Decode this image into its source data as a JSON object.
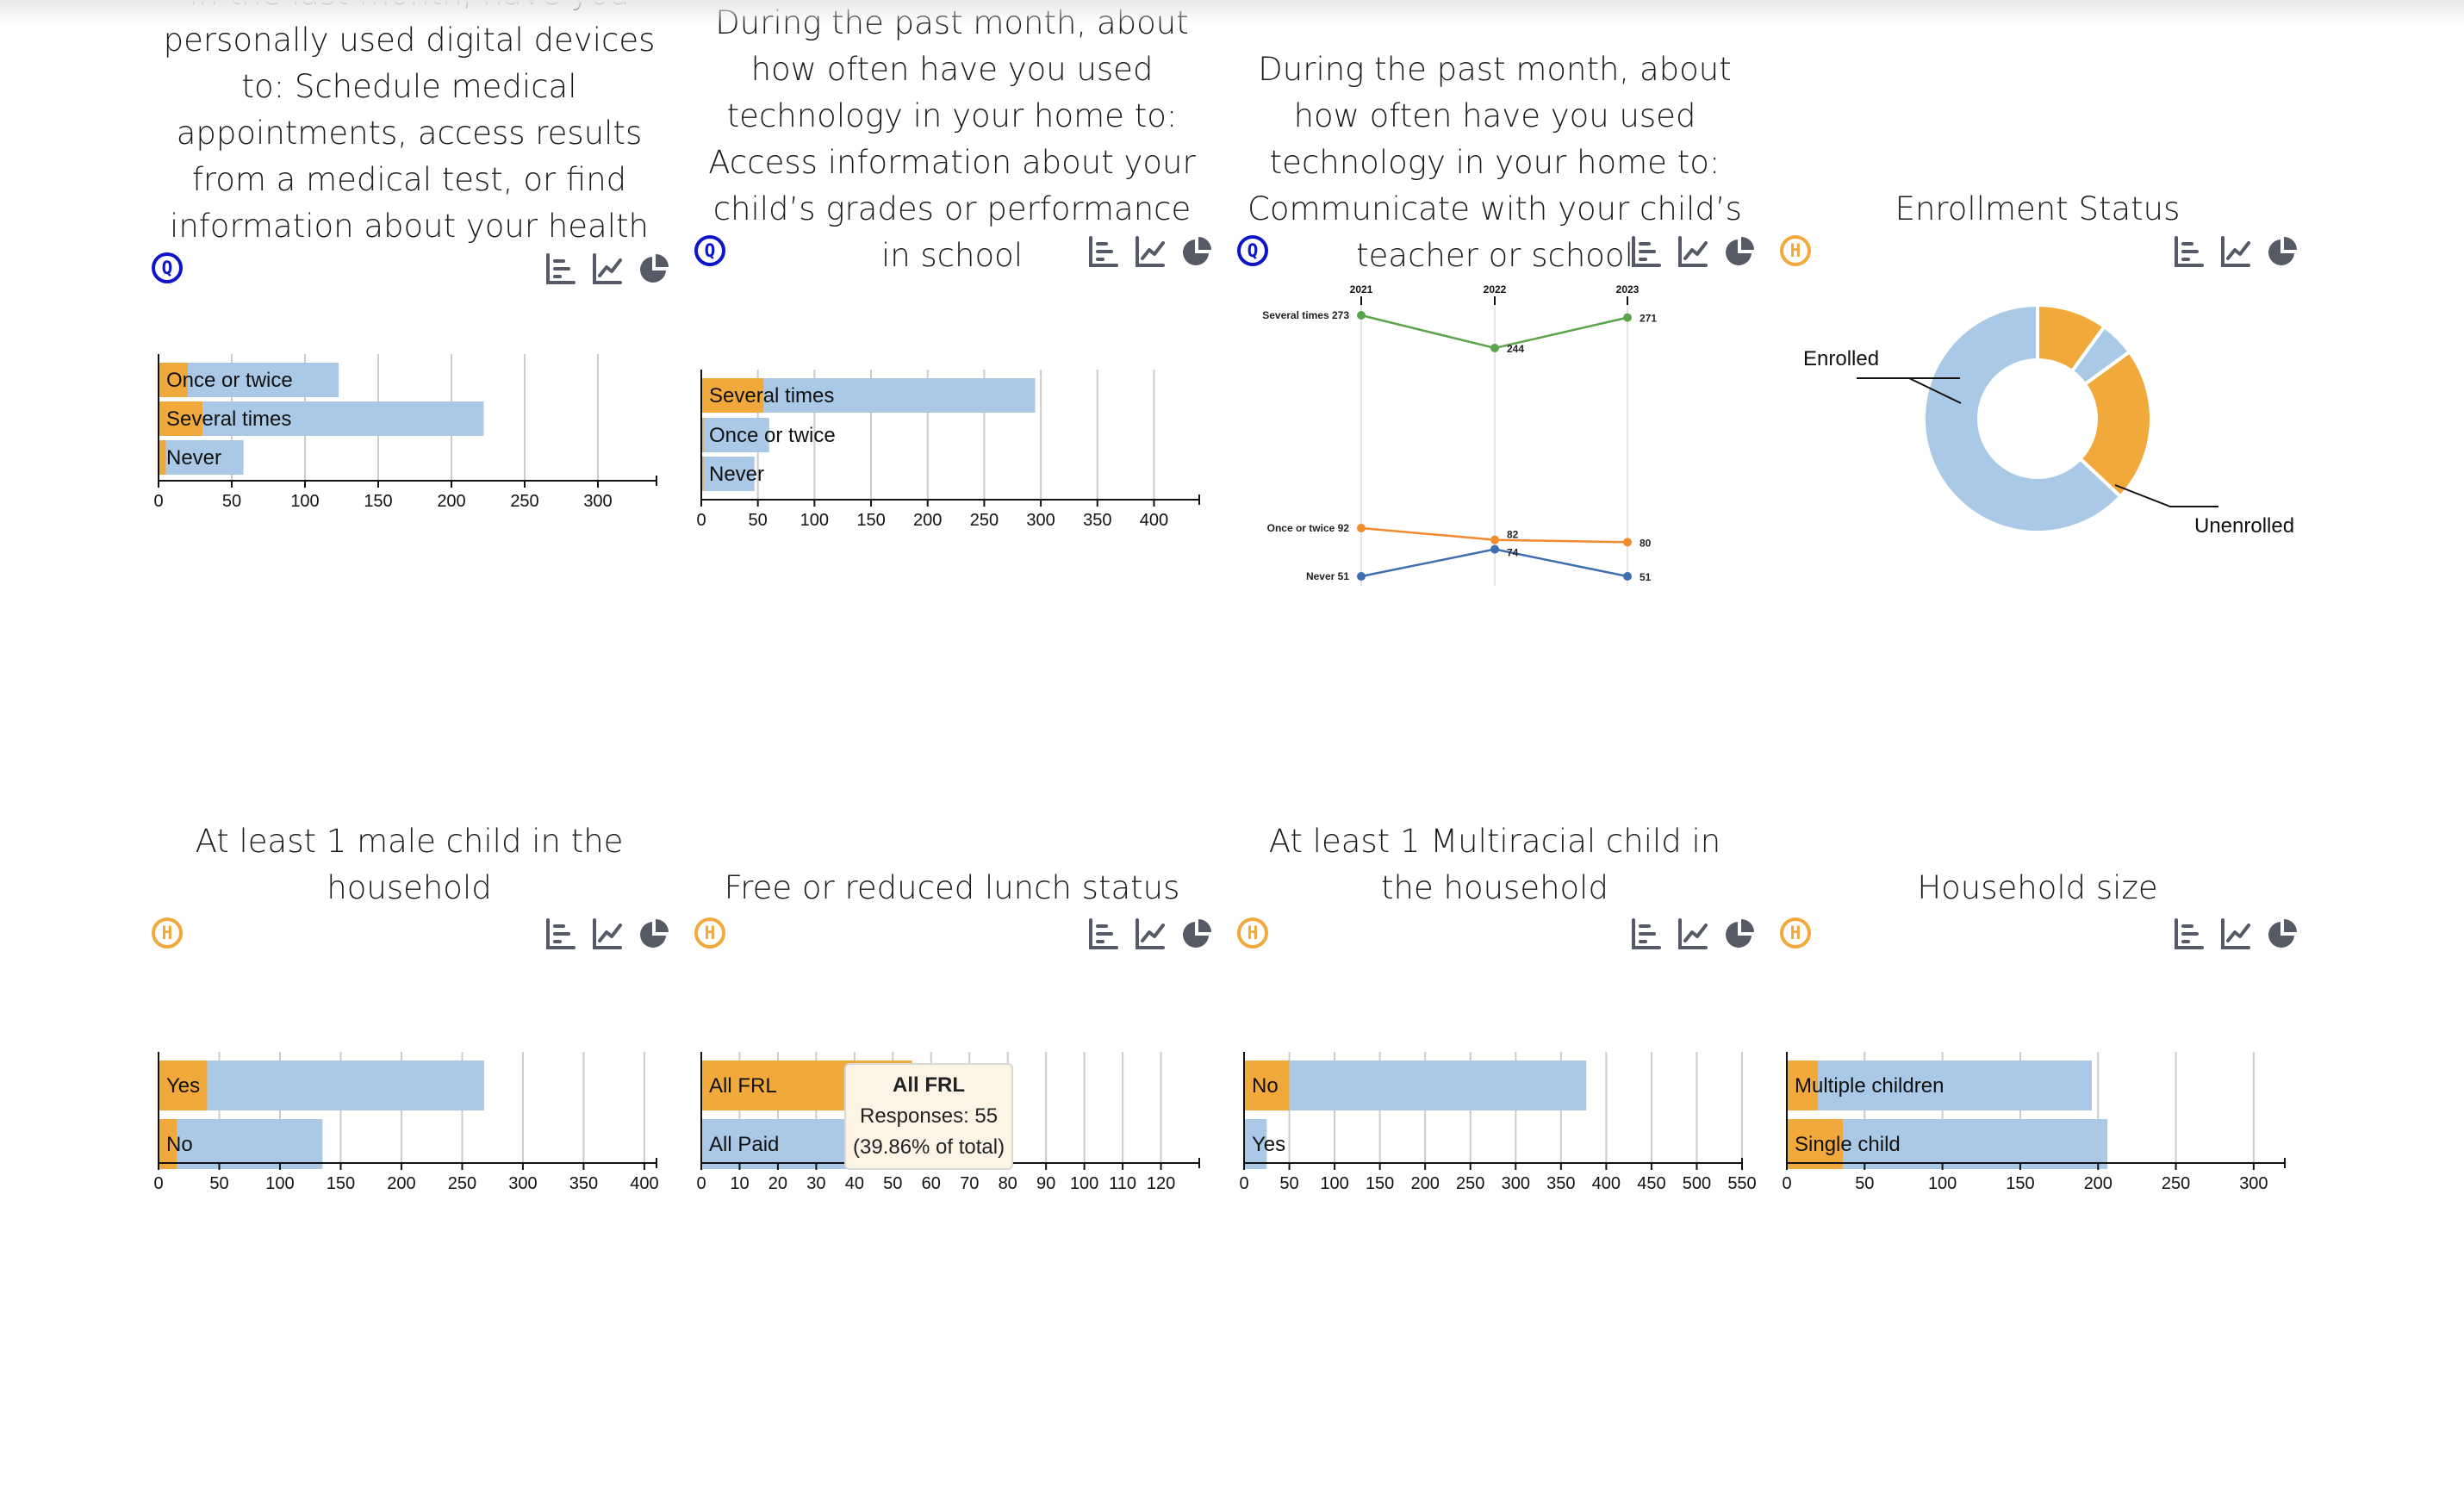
{
  "colors": {
    "highlight": "#f2a93b",
    "total": "#a9c9e6",
    "grid": "#cccccc",
    "line_several": "#5aa44a",
    "line_once": "#f28a2e",
    "line_never": "#3d6fb0",
    "survey_badge": "#0d14c9",
    "household_badge": "#f2a93b",
    "icon": "#555a66"
  },
  "icons": [
    "bar-chart-icon",
    "line-chart-icon",
    "pie-chart-icon"
  ],
  "cards": [
    {
      "id": "medical",
      "title": "In the last month, have you personally used digital devices to: Schedule medical appointments, access results from a medical test, or find information about your health",
      "badge": "Q"
    },
    {
      "id": "grades",
      "title": "During the past month, about how often have you used technology in your home to: Access information about your child’s grades or performance in school",
      "badge": "Q"
    },
    {
      "id": "teacher",
      "title": "During the past month, about how often have you used technology in your home to: Communicate with your child’s teacher or school",
      "badge": "Q"
    },
    {
      "id": "enrollment",
      "title": "Enrollment Status",
      "badge": "H"
    },
    {
      "id": "male",
      "title": "At least 1 male child in the household",
      "badge": "H"
    },
    {
      "id": "frl",
      "title": "Free or reduced lunch status",
      "badge": "H"
    },
    {
      "id": "multiracial",
      "title": "At least 1 Multiracial child in the household",
      "badge": "H"
    },
    {
      "id": "hhsize",
      "title": "Household size",
      "badge": "H"
    }
  ],
  "tooltip": {
    "title": "All FRL",
    "line1": "Responses: 55",
    "line2": "(39.86% of total)"
  },
  "chart_data": [
    {
      "id": "medical",
      "type": "bar",
      "orientation": "horizontal",
      "categories": [
        "Once or twice",
        "Several times",
        "Never"
      ],
      "series": [
        {
          "values": [
            123,
            222,
            58
          ]
        },
        {
          "values": [
            20,
            30,
            5
          ]
        }
      ],
      "xlim": [
        0,
        340
      ],
      "xticks": [
        0,
        50,
        100,
        150,
        200,
        250,
        300
      ]
    },
    {
      "id": "grades",
      "type": "bar",
      "orientation": "horizontal",
      "categories": [
        "Several times",
        "Once or twice",
        "Never"
      ],
      "series": [
        {
          "values": [
            295,
            60,
            47
          ]
        },
        {
          "values": [
            55,
            2,
            2
          ]
        }
      ],
      "xlim": [
        0,
        440
      ],
      "xticks": [
        0,
        50,
        100,
        150,
        200,
        250,
        300,
        350,
        400
      ]
    },
    {
      "id": "teacher",
      "type": "line",
      "x": [
        "2021",
        "2022",
        "2023"
      ],
      "series": [
        {
          "name": "Several times",
          "values": [
            273,
            244,
            271
          ]
        },
        {
          "name": "Once or twice",
          "values": [
            92,
            82,
            80
          ]
        },
        {
          "name": "Never",
          "values": [
            51,
            74,
            51
          ]
        }
      ],
      "start_labels": [
        "Several times 273",
        "Once or twice 92",
        "Never 51"
      ],
      "point_labels": [
        [
          "244",
          "271"
        ],
        [
          "82",
          "80"
        ],
        [
          "74",
          "51"
        ]
      ]
    },
    {
      "id": "enrollment",
      "type": "pie",
      "donut": true,
      "slices": [
        {
          "label": "Enrolled",
          "value": 10
        },
        {
          "label": "",
          "value": 5
        },
        {
          "label": "",
          "value": 22
        },
        {
          "label": "Unenrolled",
          "value": 63
        }
      ]
    },
    {
      "id": "male",
      "type": "bar",
      "orientation": "horizontal",
      "categories": [
        "Yes",
        "No"
      ],
      "series": [
        {
          "values": [
            268,
            135
          ]
        },
        {
          "values": [
            40,
            15
          ]
        }
      ],
      "xlim": [
        0,
        410
      ],
      "xticks": [
        0,
        50,
        100,
        150,
        200,
        250,
        300,
        350,
        400
      ]
    },
    {
      "id": "frl",
      "type": "bar",
      "orientation": "horizontal",
      "categories": [
        "All FRL",
        "All Paid"
      ],
      "series": [
        {
          "values": [
            55,
            70
          ]
        },
        {
          "values": [
            55,
            0
          ]
        }
      ],
      "xlim": [
        0,
        130
      ],
      "xticks": [
        0,
        10,
        20,
        30,
        40,
        50,
        60,
        70,
        80,
        90,
        100,
        110,
        120
      ]
    },
    {
      "id": "multiracial",
      "type": "bar",
      "orientation": "horizontal",
      "categories": [
        "No",
        "Yes"
      ],
      "series": [
        {
          "values": [
            378,
            25
          ]
        },
        {
          "values": [
            50,
            0
          ]
        }
      ],
      "xlim": [
        0,
        550
      ],
      "xticks": [
        0,
        50,
        100,
        150,
        200,
        250,
        300,
        350,
        400,
        450,
        500,
        550
      ]
    },
    {
      "id": "hhsize",
      "type": "bar",
      "orientation": "horizontal",
      "categories": [
        "Multiple children",
        "Single child"
      ],
      "series": [
        {
          "values": [
            196,
            206
          ]
        },
        {
          "values": [
            20,
            36
          ]
        }
      ],
      "xlim": [
        0,
        320
      ],
      "xticks": [
        0,
        50,
        100,
        150,
        200,
        250,
        300
      ]
    }
  ]
}
